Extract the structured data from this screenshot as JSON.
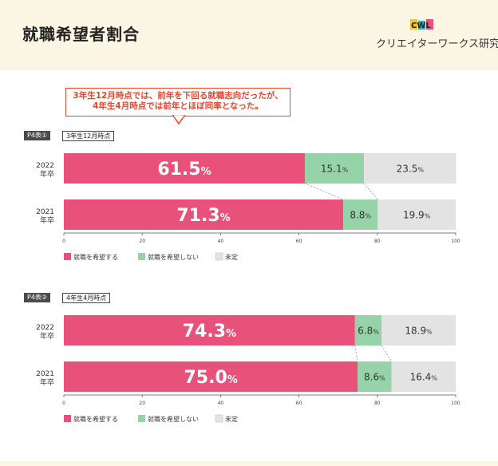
{
  "header": {
    "title": "就職希望者割合",
    "logo_mark": "CWL",
    "logo_text": "クリエイターワークス研究所"
  },
  "callout": {
    "line1": "3年生12月時点では、前年を下回る就職志向だったが、",
    "line2": "4年生4月時点では前年とほぼ同率となった。"
  },
  "colors": {
    "want": "#e8527a",
    "not_want": "#96d3a8",
    "undecided": "#e3e3e3",
    "accent": "#e8462e"
  },
  "chart_data": [
    {
      "type": "bar",
      "stacked": true,
      "orientation": "horizontal",
      "tag": "P4表①",
      "title": "3年生12月時点",
      "categories": [
        [
          "2022",
          "年卒"
        ],
        [
          "2021",
          "年卒"
        ]
      ],
      "series": [
        {
          "name": "就職を希望する",
          "values": [
            61.5,
            71.3
          ]
        },
        {
          "name": "就職を希望しない",
          "values": [
            15.1,
            8.8
          ]
        },
        {
          "name": "未定",
          "values": [
            23.5,
            19.9
          ]
        }
      ],
      "labels": [
        [
          "61.5",
          "15.1",
          "23.5"
        ],
        [
          "71.3",
          "8.8",
          "19.9"
        ]
      ],
      "unit": "%",
      "xlim": [
        0,
        100
      ],
      "xticks": [
        "0",
        "20",
        "40",
        "60",
        "80",
        "100"
      ]
    },
    {
      "type": "bar",
      "stacked": true,
      "orientation": "horizontal",
      "tag": "P4表②",
      "title": "4年生4月時点",
      "categories": [
        [
          "2022",
          "年卒"
        ],
        [
          "2021",
          "年卒"
        ]
      ],
      "series": [
        {
          "name": "就職を希望する",
          "values": [
            74.3,
            75.0
          ]
        },
        {
          "name": "就職を希望しない",
          "values": [
            6.8,
            8.6
          ]
        },
        {
          "name": "未定",
          "values": [
            18.9,
            16.4
          ]
        }
      ],
      "labels": [
        [
          "74.3",
          "6.8",
          "18.9"
        ],
        [
          "75.0",
          "8.6",
          "16.4"
        ]
      ],
      "unit": "%",
      "xlim": [
        0,
        100
      ],
      "xticks": [
        "0",
        "20",
        "40",
        "60",
        "80",
        "100"
      ]
    }
  ]
}
